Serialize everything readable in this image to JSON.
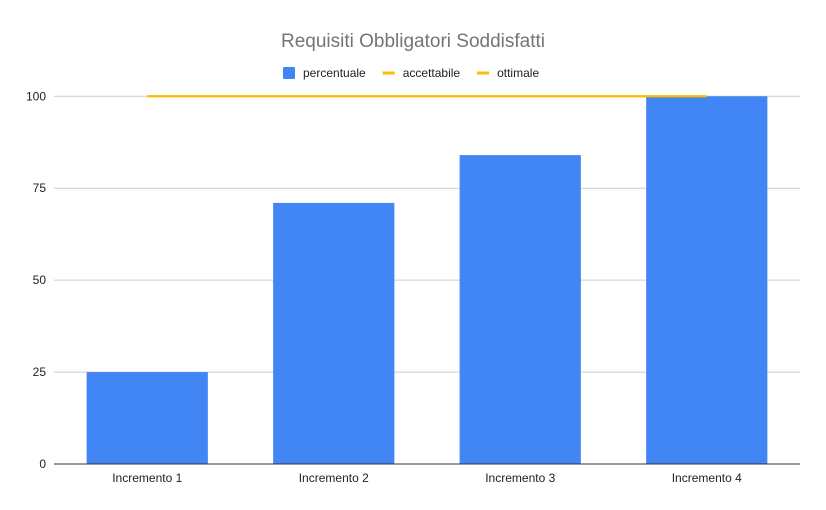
{
  "chart_data": {
    "type": "bar",
    "title": "Requisiti Obbligatori Soddisfatti",
    "xlabel": "",
    "ylabel": "",
    "categories": [
      "Incremento 1",
      "Incremento 2",
      "Incremento 3",
      "Incremento 4"
    ],
    "ylim": [
      0,
      110
    ],
    "yticks": [
      "0",
      "25",
      "50",
      "75",
      "100"
    ],
    "grid": true,
    "legend_position": "top",
    "series": [
      {
        "name": "percentuale",
        "kind": "bar",
        "color": "#4285f4",
        "values": [
          25,
          71,
          84,
          100
        ]
      },
      {
        "name": "accettabile",
        "kind": "line",
        "color": "#fbbc04",
        "values": [
          100,
          100,
          100,
          100
        ]
      },
      {
        "name": "ottimale",
        "kind": "line",
        "color": "#fbbc04",
        "values": [
          100,
          100,
          100,
          100
        ]
      }
    ]
  }
}
